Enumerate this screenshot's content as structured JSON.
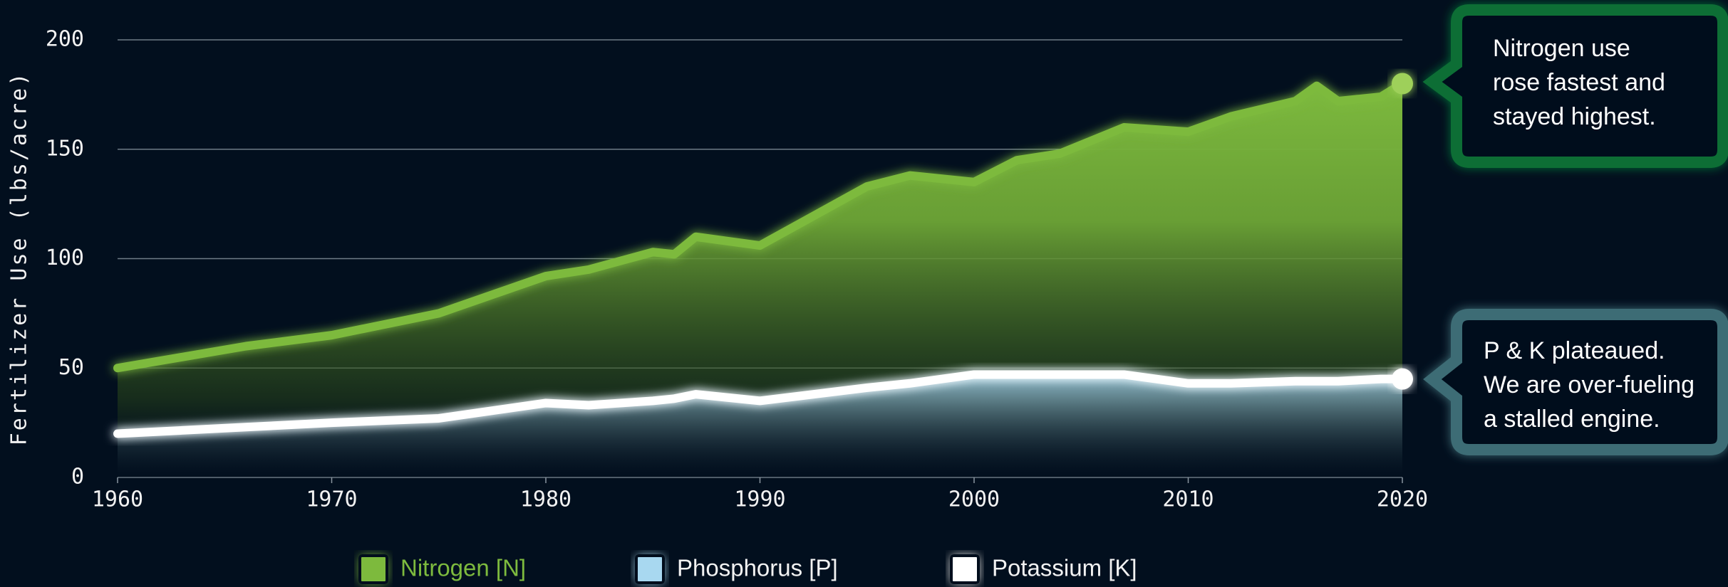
{
  "chart_data": {
    "type": "area",
    "y_label": "Fertilizer Use (lbs/acre)",
    "x": [
      1960,
      1966,
      1970,
      1975,
      1980,
      1982,
      1985,
      1986,
      1987,
      1990,
      1995,
      1997,
      2000,
      2002,
      2004,
      2007,
      2010,
      2012,
      2015,
      2016,
      2017,
      2019,
      2020
    ],
    "series": [
      {
        "name": "Nitrogen [N]",
        "color": "#7dba3e",
        "values": [
          50,
          60,
          65,
          75,
          92,
          95,
          103,
          102,
          110,
          106,
          133,
          138,
          135,
          145,
          148,
          160,
          158,
          165,
          172,
          179,
          172,
          174,
          180
        ]
      },
      {
        "name": "Phosphorus [P]",
        "color": "#a8d8f0",
        "values": [
          20,
          23,
          25,
          27,
          34,
          33,
          35,
          36,
          38,
          35,
          41,
          43,
          47,
          47,
          47,
          47,
          43,
          43,
          44,
          44,
          44,
          45,
          45
        ]
      },
      {
        "name": "Potassium [K]",
        "color": "#ffffff",
        "values": [
          20,
          23,
          25,
          27,
          34,
          33,
          35,
          36,
          38,
          35,
          41,
          43,
          47,
          47,
          47,
          47,
          43,
          43,
          44,
          44,
          44,
          45,
          45
        ]
      }
    ],
    "xlim": [
      1960,
      2020
    ],
    "xticks": [
      1960,
      1970,
      1980,
      1990,
      2000,
      2010,
      2020
    ],
    "ylim": [
      0,
      200
    ],
    "yticks": [
      0,
      50,
      100,
      150,
      200
    ],
    "grid": true,
    "annotations": [
      {
        "lines": [
          "Nitrogen use",
          "rose fastest and",
          "stayed highest."
        ]
      },
      {
        "lines": [
          "P & K plateaued.",
          "We are over-fueling",
          "a stalled engine."
        ]
      }
    ]
  }
}
